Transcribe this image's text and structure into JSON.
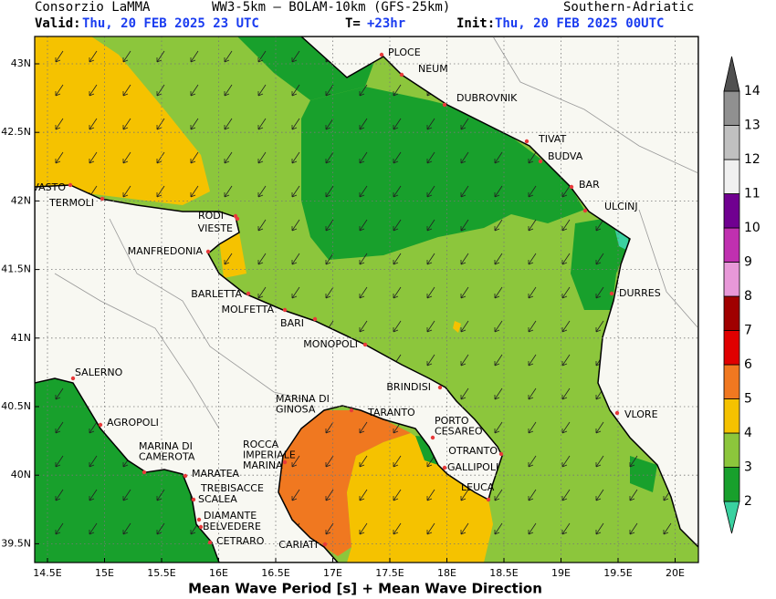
{
  "header": {
    "source": "Consorzio LaMMA",
    "model": "WW3-5km – BOLAM-10km (GFS-25km)",
    "region": "Southern-Adriatic",
    "valid_label": "Valid:",
    "valid": "Thu, 20 FEB 2025  23 UTC",
    "step_label": "T=",
    "step": "+23hr",
    "init_label": "Init:",
    "init": "Thu, 20 FEB 2025 00UTC"
  },
  "map": {
    "lon_ticks": [
      "14.5E",
      "15E",
      "15.5E",
      "16E",
      "16.5E",
      "17E",
      "17.5E",
      "18E",
      "18.5E",
      "19E",
      "19.5E",
      "20E"
    ],
    "lat_ticks": [
      "43N",
      "42.5N",
      "42N",
      "41.5N",
      "41N",
      "40.5N",
      "40N",
      "39.5N"
    ],
    "cities": [
      {
        "lines": [
          "PLOCE"
        ]
      },
      {
        "lines": [
          "NEUM"
        ]
      },
      {
        "lines": [
          "DUBROVNIK"
        ]
      },
      {
        "lines": [
          "TIVAT"
        ]
      },
      {
        "lines": [
          "BUDVA"
        ]
      },
      {
        "lines": [
          "BAR"
        ]
      },
      {
        "lines": [
          "ULCINJ"
        ]
      },
      {
        "lines": [
          "DURRES"
        ]
      },
      {
        "lines": [
          "VLORE"
        ]
      },
      {
        "lines": [
          "VASTO"
        ]
      },
      {
        "lines": [
          "TERMOLI"
        ]
      },
      {
        "lines": [
          "RODI"
        ]
      },
      {
        "lines": [
          "VIESTE"
        ]
      },
      {
        "lines": [
          "MANFREDONIA"
        ]
      },
      {
        "lines": [
          "BARLETTA"
        ]
      },
      {
        "lines": [
          "MOLFETTA"
        ]
      },
      {
        "lines": [
          "BARI"
        ]
      },
      {
        "lines": [
          "MONOPOLI"
        ]
      },
      {
        "lines": [
          "BRINDISI"
        ]
      },
      {
        "lines": [
          "MARINA DI",
          "GINOSA"
        ]
      },
      {
        "lines": [
          "TARANTO"
        ]
      },
      {
        "lines": [
          "PORTO",
          "CESAREO"
        ]
      },
      {
        "lines": [
          "OTRANTO"
        ]
      },
      {
        "lines": [
          "GALLIPOLI"
        ]
      },
      {
        "lines": [
          "LEUCA"
        ]
      },
      {
        "lines": [
          "SALERNO"
        ]
      },
      {
        "lines": [
          "AGROPOLI"
        ]
      },
      {
        "lines": [
          "MARINA DI",
          "CAMEROTA"
        ]
      },
      {
        "lines": [
          "MARATEA"
        ]
      },
      {
        "lines": [
          "ROCCA",
          "IMPERIALE",
          "MARINA"
        ]
      },
      {
        "lines": [
          "TREBISACCE"
        ]
      },
      {
        "lines": [
          "SCALEA"
        ]
      },
      {
        "lines": [
          "DIAMANTE"
        ]
      },
      {
        "lines": [
          "BELVEDERE"
        ]
      },
      {
        "lines": [
          "CETRARO"
        ]
      },
      {
        "lines": [
          "CARIATI"
        ]
      }
    ]
  },
  "colorbar": {
    "ticks": [
      2,
      3,
      4,
      5,
      6,
      7,
      8,
      9,
      10,
      11,
      12,
      13,
      14
    ],
    "colors": [
      "#3ad1a0",
      "#18a02c",
      "#8cc63c",
      "#f5c200",
      "#f07820",
      "#e00000",
      "#a00000",
      "#e898d8",
      "#c030b0",
      "#700090",
      "#f0f0f0",
      "#c0c0c0",
      "#909090",
      "#505050"
    ]
  },
  "footer": {
    "title": "Mean Wave Period [s] + Mean Wave Direction"
  }
}
